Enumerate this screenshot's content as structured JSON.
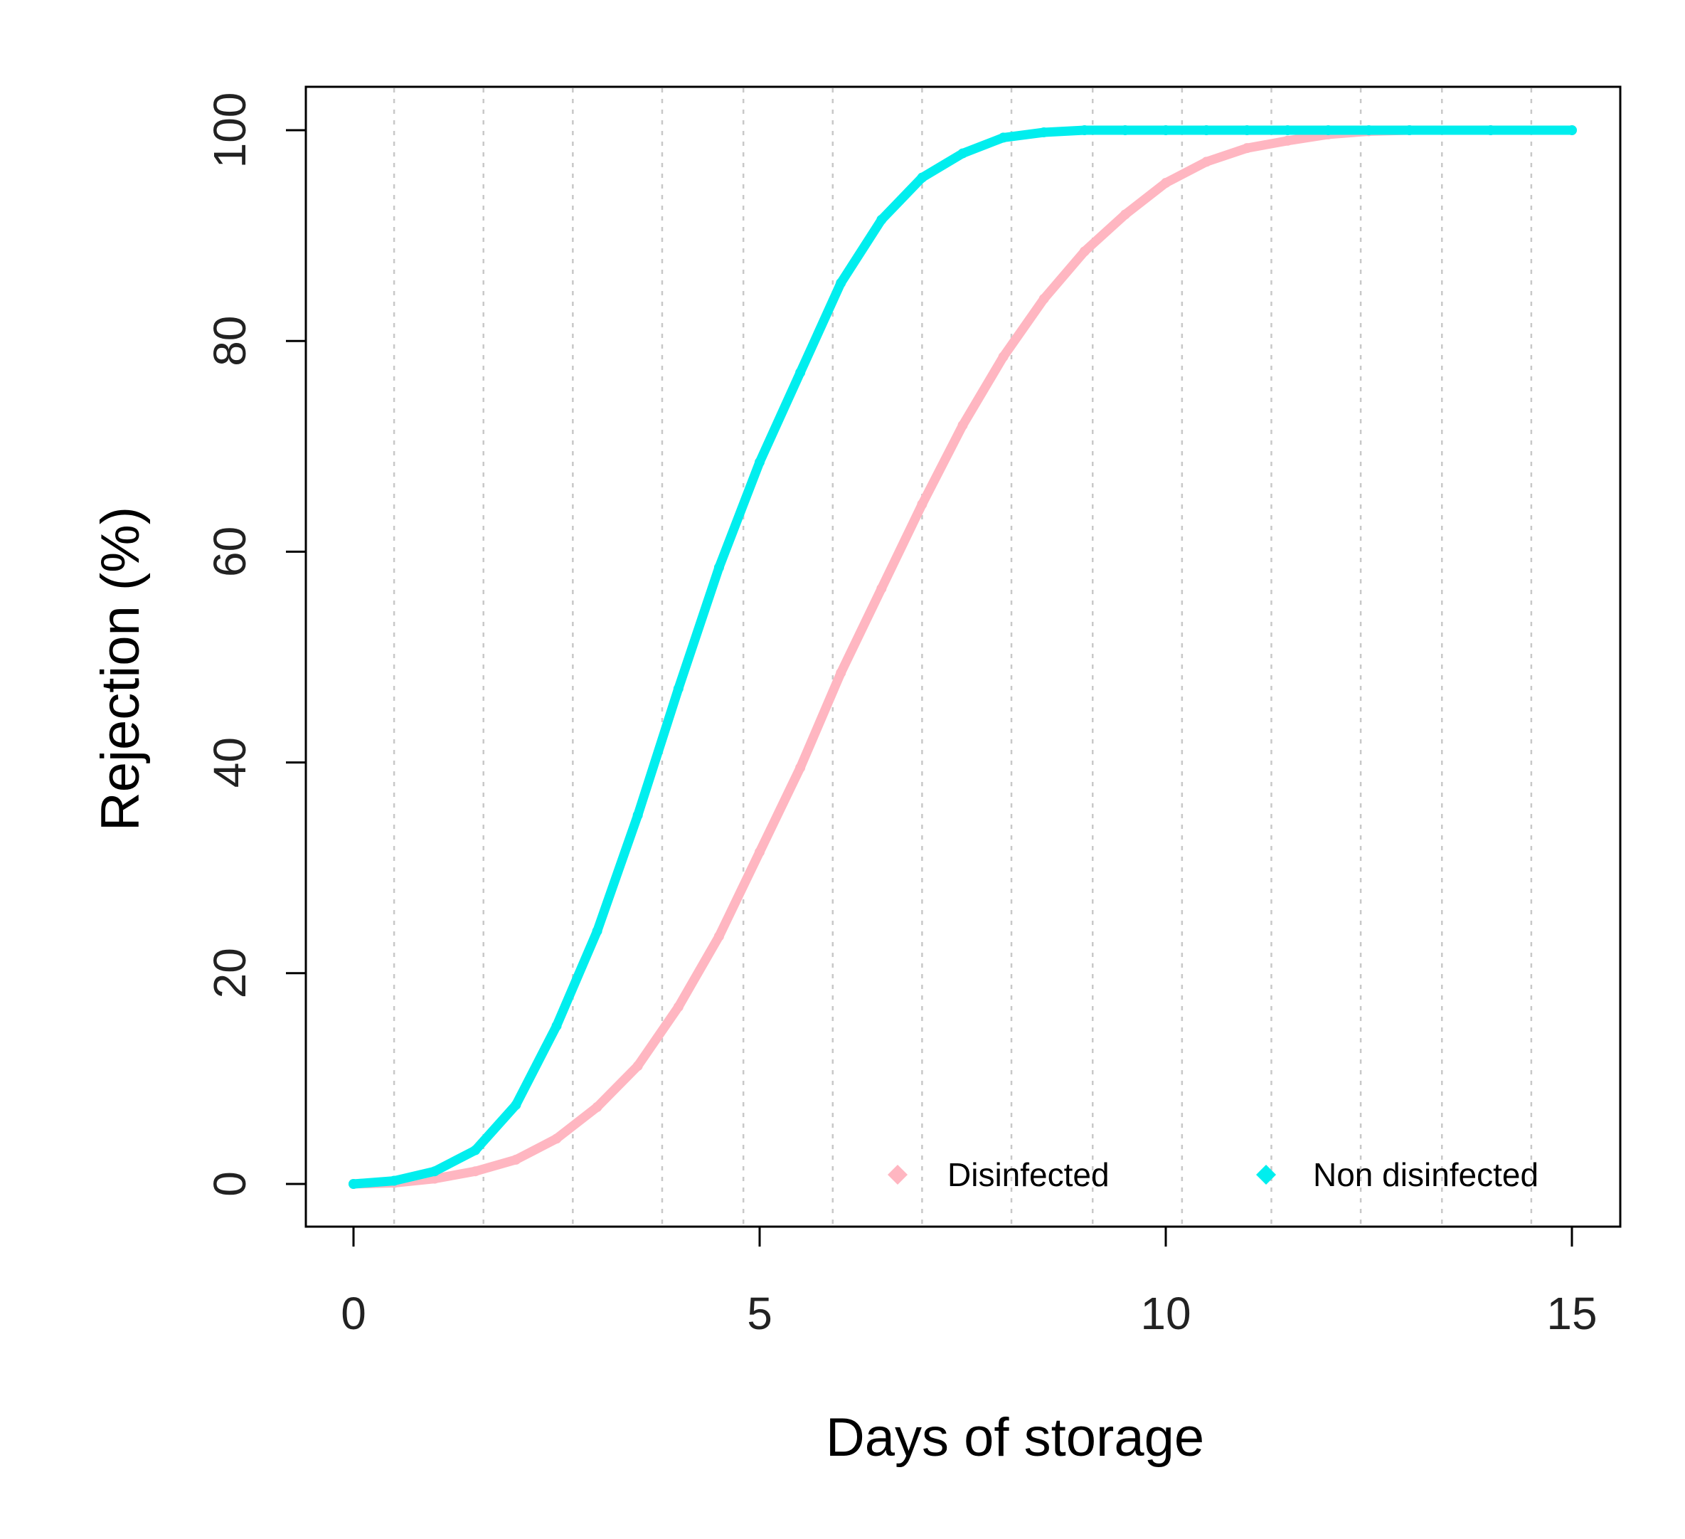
{
  "chart_data": {
    "type": "line",
    "title": "",
    "xlabel": "Days of storage",
    "ylabel": "Rejection (%)",
    "xlim": [
      0,
      15
    ],
    "ylim": [
      0,
      100
    ],
    "x_ticks": [
      0,
      5,
      10,
      15
    ],
    "x_tick_labels": [
      "0",
      "5",
      "10",
      "15"
    ],
    "y_ticks": [
      0,
      20,
      40,
      60,
      80,
      100
    ],
    "y_tick_labels": [
      "0",
      "20",
      "40",
      "60",
      "80",
      "100"
    ],
    "vertical_gridlines": [
      0.5,
      1.6,
      2.7,
      3.8,
      4.8,
      5.9,
      7.0,
      8.1,
      9.1,
      10.2,
      11.3,
      12.4,
      13.4,
      14.5
    ],
    "grid": "vertical dotted",
    "legend_position": "bottom-right",
    "x": [
      0,
      0.5,
      1,
      1.5,
      2,
      2.5,
      3,
      3.5,
      4,
      4.5,
      5,
      5.5,
      6,
      6.5,
      7,
      7.5,
      8,
      8.5,
      9,
      9.5,
      10,
      10.5,
      11,
      11.5,
      12,
      12.5,
      13,
      14,
      15
    ],
    "series": [
      {
        "name": "Disinfected",
        "color": "#ffb6c1",
        "values": [
          0,
          0.1,
          0.5,
          1.2,
          2.3,
          4.3,
          7.3,
          11.2,
          16.8,
          23.5,
          31.5,
          39.5,
          48.5,
          56.5,
          64.5,
          72,
          78.5,
          84,
          88.5,
          92,
          95,
          97,
          98.3,
          99,
          99.6,
          99.9,
          100,
          100,
          100
        ]
      },
      {
        "name": "Non disinfected",
        "color": "#00eeee",
        "values": [
          0,
          0.3,
          1.2,
          3.2,
          7.5,
          15,
          24,
          35,
          47,
          58.5,
          68.5,
          77,
          85.5,
          91.5,
          95.5,
          97.8,
          99.3,
          99.8,
          100,
          100,
          100,
          100,
          100,
          100,
          100,
          100,
          100,
          100,
          100
        ]
      }
    ]
  }
}
